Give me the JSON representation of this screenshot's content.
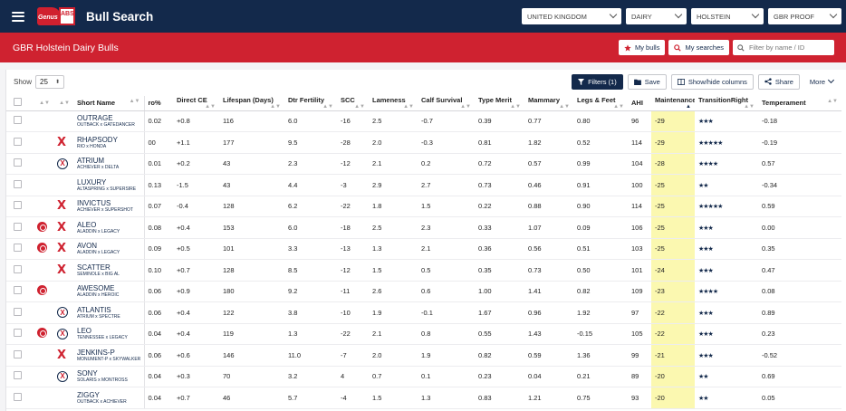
{
  "header": {
    "title": "Bull Search",
    "logo_text": "Genus",
    "logo_box": "ABS",
    "selects": [
      "UNITED KINGDOM",
      "DAIRY",
      "HOLSTEIN",
      "GBR PROOF"
    ]
  },
  "subheader": {
    "title": "GBR Holstein Dairy Bulls",
    "my_bulls": "My bulls",
    "my_searches": "My searches",
    "filter_placeholder": "Filter by name / ID"
  },
  "toolbar": {
    "show_label": "Show",
    "page_size": "25",
    "filters": "Filters (1)",
    "save": "Save",
    "show_hide": "Show/hide columns",
    "share": "Share",
    "more": "More"
  },
  "columns": [
    "Short Name",
    "ro%",
    "Direct CE",
    "Lifespan (Days)",
    "Dtr Fertility",
    "SCC",
    "Lameness",
    "Calf Survival",
    "Type Merit",
    "Mammary",
    "Legs & Feet",
    "AHI",
    "Maintenance",
    "TransitionRight",
    "Temperament"
  ],
  "rows": [
    {
      "badge": "",
      "mark": "",
      "name": "OUTRAGE",
      "ped": "OUTBACK x GATEDANCER",
      "ro": "0.02",
      "ce": "+0.8",
      "life": "116",
      "fert": "6.0",
      "scc": "-16",
      "lame": "2.5",
      "calf": "-0.7",
      "type": "0.39",
      "mam": "0.77",
      "legs": "0.80",
      "ahi": "96",
      "maint": "-29",
      "stars": "★★★",
      "temp": "-0.18"
    },
    {
      "badge": "",
      "mark": "x",
      "name": "RHAPSODY",
      "ped": "RIO x HONDA",
      "ro": "00",
      "ce": "+1.1",
      "life": "177",
      "fert": "9.5",
      "scc": "-28",
      "lame": "2.0",
      "calf": "-0.3",
      "type": "0.81",
      "mam": "1.82",
      "legs": "0.52",
      "ahi": "114",
      "maint": "-29",
      "stars": "★★★★★",
      "temp": "-0.19"
    },
    {
      "badge": "",
      "mark": "xc",
      "name": "ATRIUM",
      "ped": "ACHIEVER x DELTA",
      "ro": "0.01",
      "ce": "+0.2",
      "life": "43",
      "fert": "2.3",
      "scc": "-12",
      "lame": "2.1",
      "calf": "0.2",
      "type": "0.72",
      "mam": "0.57",
      "legs": "0.99",
      "ahi": "104",
      "maint": "-28",
      "stars": "★★★★",
      "temp": "0.57"
    },
    {
      "badge": "",
      "mark": "",
      "name": "LUXURY",
      "ped": "ALTASPRING x SUPERSIRE",
      "ro": "0.13",
      "ce": "-1.5",
      "life": "43",
      "fert": "4.4",
      "scc": "-3",
      "lame": "2.9",
      "calf": "2.7",
      "type": "0.73",
      "mam": "0.46",
      "legs": "0.91",
      "ahi": "100",
      "maint": "-25",
      "stars": "★★",
      "temp": "-0.34"
    },
    {
      "badge": "",
      "mark": "x",
      "name": "INVICTUS",
      "ped": "ACHIEVER x SUPERSHOT",
      "ro": "0.07",
      "ce": "-0.4",
      "life": "128",
      "fert": "6.2",
      "scc": "-22",
      "lame": "1.8",
      "calf": "1.5",
      "type": "0.22",
      "mam": "0.88",
      "legs": "0.90",
      "ahi": "114",
      "maint": "-25",
      "stars": "★★★★★",
      "temp": "0.59"
    },
    {
      "badge": "r",
      "mark": "x",
      "name": "ALEO",
      "ped": "ALADDIN x LEGACY",
      "ro": "0.08",
      "ce": "+0.4",
      "life": "153",
      "fert": "6.0",
      "scc": "-18",
      "lame": "2.5",
      "calf": "2.3",
      "type": "0.33",
      "mam": "1.07",
      "legs": "0.09",
      "ahi": "106",
      "maint": "-25",
      "stars": "★★★",
      "temp": "0.00"
    },
    {
      "badge": "r",
      "mark": "x",
      "name": "AVON",
      "ped": "ALADDIN x LEGACY",
      "ro": "0.09",
      "ce": "+0.5",
      "life": "101",
      "fert": "3.3",
      "scc": "-13",
      "lame": "1.3",
      "calf": "2.1",
      "type": "0.36",
      "mam": "0.56",
      "legs": "0.51",
      "ahi": "103",
      "maint": "-25",
      "stars": "★★★",
      "temp": "0.35"
    },
    {
      "badge": "",
      "mark": "x",
      "name": "SCATTER",
      "ped": "SEMINOLE x BIG AL",
      "ro": "0.10",
      "ce": "+0.7",
      "life": "128",
      "fert": "8.5",
      "scc": "-12",
      "lame": "1.5",
      "calf": "0.5",
      "type": "0.35",
      "mam": "0.73",
      "legs": "0.50",
      "ahi": "101",
      "maint": "-24",
      "stars": "★★★",
      "temp": "0.47"
    },
    {
      "badge": "r",
      "mark": "",
      "name": "AWESOME",
      "ped": "ALADDIN x HEROIC",
      "ro": "0.06",
      "ce": "+0.9",
      "life": "180",
      "fert": "9.2",
      "scc": "-11",
      "lame": "2.6",
      "calf": "0.6",
      "type": "1.00",
      "mam": "1.41",
      "legs": "0.82",
      "ahi": "109",
      "maint": "-23",
      "stars": "★★★★",
      "temp": "0.08"
    },
    {
      "badge": "",
      "mark": "xc",
      "name": "ATLANTIS",
      "ped": "ATRIUM x SPECTRE",
      "ro": "0.06",
      "ce": "+0.4",
      "life": "122",
      "fert": "3.8",
      "scc": "-10",
      "lame": "1.9",
      "calf": "-0.1",
      "type": "1.67",
      "mam": "0.96",
      "legs": "1.92",
      "ahi": "97",
      "maint": "-22",
      "stars": "★★★",
      "temp": "0.89"
    },
    {
      "badge": "r",
      "mark": "xc",
      "name": "LEO",
      "ped": "TENNESSEE x LEGACY",
      "ro": "0.04",
      "ce": "+0.4",
      "life": "119",
      "fert": "1.3",
      "scc": "-22",
      "lame": "2.1",
      "calf": "0.8",
      "type": "0.55",
      "mam": "1.43",
      "legs": "-0.15",
      "ahi": "105",
      "maint": "-22",
      "stars": "★★★",
      "temp": "0.23"
    },
    {
      "badge": "",
      "mark": "x",
      "name": "JENKINS-P",
      "ped": "MONUMENT-P x SKYWALKER",
      "ro": "0.06",
      "ce": "+0.6",
      "life": "146",
      "fert": "11.0",
      "scc": "-7",
      "lame": "2.0",
      "calf": "1.9",
      "type": "0.82",
      "mam": "0.59",
      "legs": "1.36",
      "ahi": "99",
      "maint": "-21",
      "stars": "★★★",
      "temp": "-0.52"
    },
    {
      "badge": "",
      "mark": "xc",
      "name": "SONY",
      "ped": "SOLARIS x MONTROSS",
      "ro": "0.04",
      "ce": "+0.3",
      "life": "70",
      "fert": "3.2",
      "scc": "4",
      "lame": "0.7",
      "calf": "0.1",
      "type": "0.23",
      "mam": "0.04",
      "legs": "0.21",
      "ahi": "89",
      "maint": "-20",
      "stars": "★★",
      "temp": "0.69"
    },
    {
      "badge": "",
      "mark": "",
      "name": "ZIGGY",
      "ped": "OUTBACK x ACHIEVER",
      "ro": "0.04",
      "ce": "+0.7",
      "life": "46",
      "fert": "5.7",
      "scc": "-4",
      "lame": "1.5",
      "calf": "1.3",
      "type": "0.83",
      "mam": "1.21",
      "legs": "0.75",
      "ahi": "93",
      "maint": "-20",
      "stars": "★★",
      "temp": "0.05"
    }
  ]
}
